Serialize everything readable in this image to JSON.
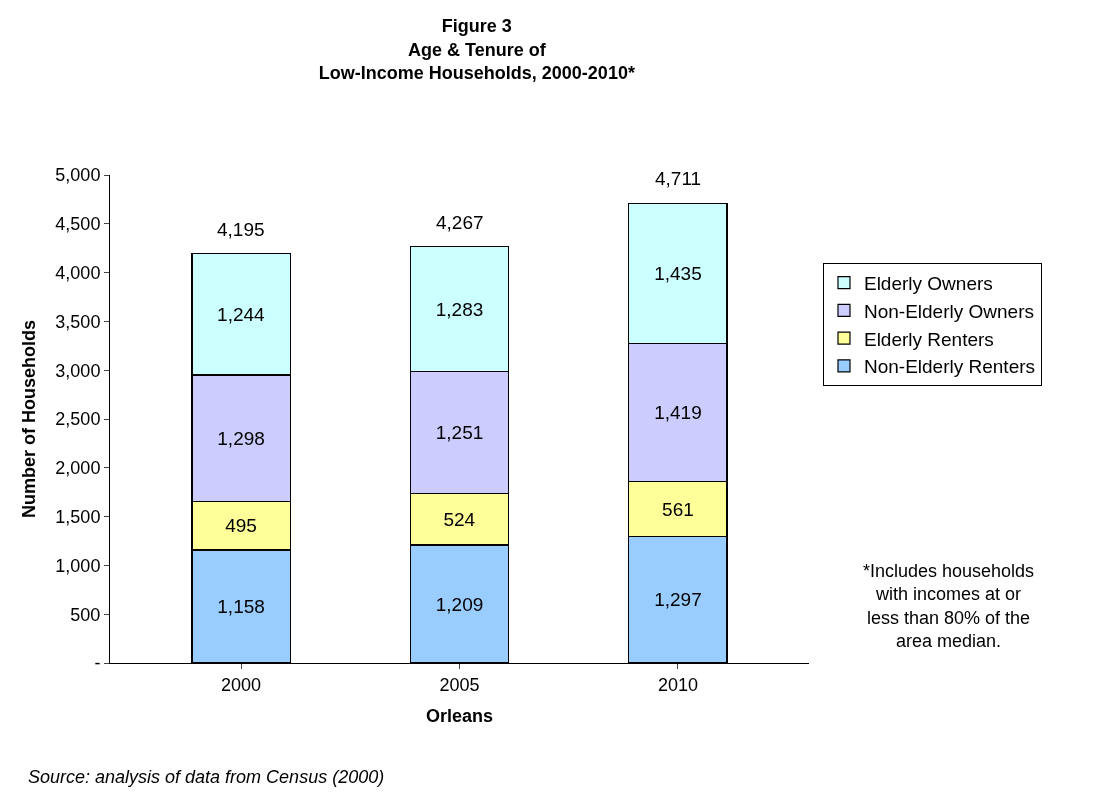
{
  "chart_data": {
    "type": "bar",
    "stacked": true,
    "title": "Figure 3\nAge & Tenure of\nLow-Income Households, 2000-2010*",
    "xlabel": "Orleans",
    "ylabel": "Number of Households",
    "categories": [
      "2000",
      "2005",
      "2010"
    ],
    "series": [
      {
        "name": "Non-Elderly Renters",
        "color": "#99ccff",
        "values": [
          1158,
          1209,
          1297
        ],
        "value_labels": [
          "1,158",
          "1,209",
          "1,297"
        ]
      },
      {
        "name": "Elderly Renters",
        "color": "#ffff99",
        "values": [
          495,
          524,
          561
        ],
        "value_labels": [
          "495",
          "524",
          "561"
        ]
      },
      {
        "name": "Non-Elderly Owners",
        "color": "#ccccff",
        "values": [
          1298,
          1251,
          1419
        ],
        "value_labels": [
          "1,298",
          "1,251",
          "1,419"
        ]
      },
      {
        "name": "Elderly Owners",
        "color": "#ccffff",
        "values": [
          1244,
          1283,
          1435
        ],
        "value_labels": [
          "1,244",
          "1,283",
          "1,435"
        ]
      }
    ],
    "totals": [
      "4,195",
      "4,267",
      "4,711"
    ],
    "ylim": [
      0,
      5000
    ],
    "yticks": [
      {
        "value": 0,
        "label": "-"
      },
      500,
      {
        "value": 1000,
        "label": "1,000"
      },
      {
        "value": 1500,
        "label": "1,500"
      },
      {
        "value": 2000,
        "label": "2,000"
      },
      {
        "value": 2500,
        "label": "2,500"
      },
      {
        "value": 3000,
        "label": "3,000"
      },
      {
        "value": 3500,
        "label": "3,500"
      },
      {
        "value": 4000,
        "label": "4,000"
      },
      {
        "value": 4500,
        "label": "4,500"
      },
      {
        "value": 5000,
        "label": "5,000"
      }
    ],
    "legend": "right",
    "annotations": [
      "*Includes households\nwith incomes at or\nless than 80% of the\narea median.",
      "Source: analysis of data from Census (2000)"
    ]
  }
}
